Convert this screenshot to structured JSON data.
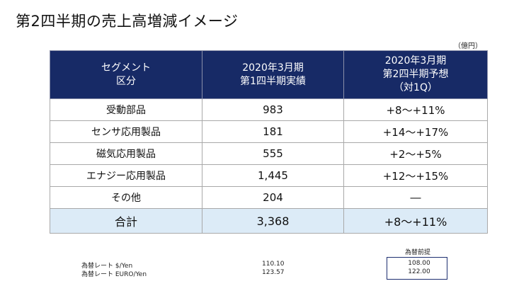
{
  "title": "第2四半期の売上高増減イメージ",
  "unit": "（億円）",
  "table": {
    "headers": [
      {
        "lines": [
          "セグメント",
          "区分"
        ]
      },
      {
        "lines": [
          "2020年3月期",
          "第1四半期実績"
        ]
      },
      {
        "lines": [
          "2020年3月期",
          "第2四半期予想",
          "（対1Q）"
        ]
      }
    ],
    "rows": [
      {
        "segment": "受動部品",
        "q1_actual": "983",
        "q2_forecast": "+8～+11%"
      },
      {
        "segment": "センサ応用製品",
        "q1_actual": "181",
        "q2_forecast": "+14～+17%"
      },
      {
        "segment": "磁気応用製品",
        "q1_actual": "555",
        "q2_forecast": "+2～+5%"
      },
      {
        "segment": "エナジー応用製品",
        "q1_actual": "1,445",
        "q2_forecast": "+12～+15%"
      },
      {
        "segment": "その他",
        "q1_actual": "204",
        "q2_forecast": "―"
      }
    ],
    "total": {
      "segment": "合計",
      "q1_actual": "3,368",
      "q2_forecast": "+8～+11%"
    }
  },
  "fx": {
    "assumption_header": "為替前提",
    "rows": [
      {
        "label": "為替レート $/Yen",
        "q1_actual": "110.10",
        "assumption": "108.00"
      },
      {
        "label": "為替レート EURO/Yen",
        "q1_actual": "123.57",
        "assumption": "122.00"
      }
    ]
  },
  "colors": {
    "header_bg": "#172a66",
    "total_bg": "#dcebf7",
    "fx_box_border": "#1d2e70"
  }
}
